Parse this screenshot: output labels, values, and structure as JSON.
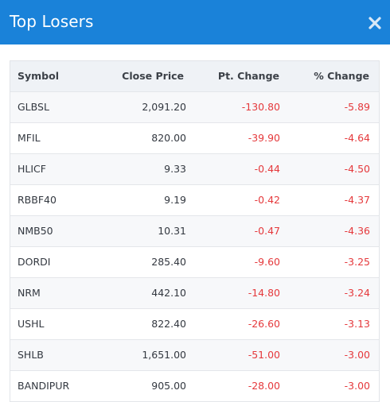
{
  "header": {
    "title": "Top Losers",
    "close_icon": "close-icon"
  },
  "table": {
    "columns": [
      "Symbol",
      "Close Price",
      "Pt. Change",
      "% Change"
    ],
    "rows": [
      {
        "symbol": "GLBSL",
        "close": "2,091.20",
        "pt": "-130.80",
        "pct": "-5.89"
      },
      {
        "symbol": "MFIL",
        "close": "820.00",
        "pt": "-39.90",
        "pct": "-4.64"
      },
      {
        "symbol": "HLICF",
        "close": "9.33",
        "pt": "-0.44",
        "pct": "-4.50"
      },
      {
        "symbol": "RBBF40",
        "close": "9.19",
        "pt": "-0.42",
        "pct": "-4.37"
      },
      {
        "symbol": "NMB50",
        "close": "10.31",
        "pt": "-0.47",
        "pct": "-4.36"
      },
      {
        "symbol": "DORDI",
        "close": "285.40",
        "pt": "-9.60",
        "pct": "-3.25"
      },
      {
        "symbol": "NRM",
        "close": "442.10",
        "pt": "-14.80",
        "pct": "-3.24"
      },
      {
        "symbol": "USHL",
        "close": "822.40",
        "pt": "-26.60",
        "pct": "-3.13"
      },
      {
        "symbol": "SHLB",
        "close": "1,651.00",
        "pt": "-51.00",
        "pct": "-3.00"
      },
      {
        "symbol": "BANDIPUR",
        "close": "905.00",
        "pt": "-28.00",
        "pct": "-3.00"
      }
    ]
  },
  "colors": {
    "header_bg": "#1a82d9",
    "negative": "#e5393c"
  }
}
